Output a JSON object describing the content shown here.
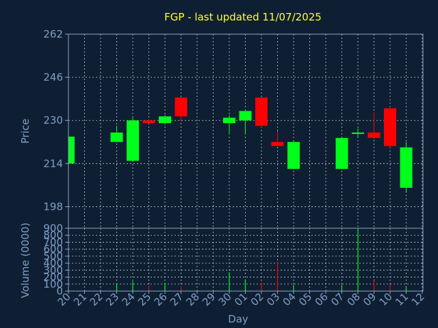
{
  "title": "FGP - last updated 11/07/2025",
  "colors": {
    "background": "#0f1f33",
    "up": "#00ff1a",
    "down": "#ff0000",
    "title": "#ffff33",
    "axis_text": "#7f9fc6",
    "grid": "#ffffff"
  },
  "chart_data": [
    {
      "type": "candlestick",
      "title": "FGP - last updated 11/07/2025",
      "ylabel": "Price",
      "ylim": [
        190,
        262
      ],
      "yticks": [
        198,
        214,
        230,
        246,
        262
      ],
      "grid": true,
      "categories": [
        "20",
        "21",
        "22",
        "23",
        "24",
        "25",
        "26",
        "27",
        "28",
        "29",
        "30",
        "01",
        "02",
        "03",
        "04",
        "05",
        "06",
        "07",
        "08",
        "09",
        "10",
        "11",
        "12"
      ],
      "candles": [
        {
          "day": "20",
          "open": 214,
          "high": 224,
          "low": 214,
          "close": 224
        },
        {
          "day": "23",
          "open": 222,
          "high": 228,
          "low": 222,
          "close": 225.5
        },
        {
          "day": "24",
          "open": 215,
          "high": 231,
          "low": 215,
          "close": 230
        },
        {
          "day": "25",
          "open": 230,
          "high": 230.5,
          "low": 229,
          "close": 229
        },
        {
          "day": "26",
          "open": 229,
          "high": 232,
          "low": 229,
          "close": 231.5
        },
        {
          "day": "27",
          "open": 238.5,
          "high": 238.5,
          "low": 229.5,
          "close": 231.5
        },
        {
          "day": "30",
          "open": 229,
          "high": 232,
          "low": 225,
          "close": 231
        },
        {
          "day": "01",
          "open": 230,
          "high": 233.5,
          "low": 225,
          "close": 233.5
        },
        {
          "day": "02",
          "open": 238.5,
          "high": 238.5,
          "low": 227.5,
          "close": 228
        },
        {
          "day": "03",
          "open": 222,
          "high": 226,
          "low": 220.5,
          "close": 220.5
        },
        {
          "day": "04",
          "open": 212,
          "high": 222.5,
          "low": 212,
          "close": 222
        },
        {
          "day": "07",
          "open": 212,
          "high": 223.5,
          "low": 212,
          "close": 223.5
        },
        {
          "day": "08",
          "open": 225,
          "high": 227,
          "low": 223.5,
          "close": 225.5
        },
        {
          "day": "09",
          "open": 225.5,
          "high": 233,
          "low": 223,
          "close": 223.5
        },
        {
          "day": "10",
          "open": 234.5,
          "high": 234.5,
          "low": 220,
          "close": 220.5
        },
        {
          "day": "11",
          "open": 205,
          "high": 222,
          "low": 203.5,
          "close": 220
        }
      ]
    },
    {
      "type": "bar",
      "xlabel": "Day",
      "ylabel": "Volume (0000)",
      "ylim": [
        0,
        900
      ],
      "yticks": [
        0,
        100,
        200,
        300,
        400,
        500,
        600,
        700,
        800,
        900
      ],
      "grid": true,
      "categories": [
        "20",
        "21",
        "22",
        "23",
        "24",
        "25",
        "26",
        "27",
        "28",
        "29",
        "30",
        "01",
        "02",
        "03",
        "04",
        "05",
        "06",
        "07",
        "08",
        "09",
        "10",
        "11",
        "12"
      ],
      "bars": [
        {
          "day": "20",
          "value": 30,
          "direction": "up"
        },
        {
          "day": "23",
          "value": 110,
          "direction": "up"
        },
        {
          "day": "24",
          "value": 140,
          "direction": "up"
        },
        {
          "day": "25",
          "value": 80,
          "direction": "down"
        },
        {
          "day": "26",
          "value": 120,
          "direction": "up"
        },
        {
          "day": "27",
          "value": 70,
          "direction": "down"
        },
        {
          "day": "30",
          "value": 270,
          "direction": "up"
        },
        {
          "day": "01",
          "value": 160,
          "direction": "up"
        },
        {
          "day": "02",
          "value": 130,
          "direction": "down"
        },
        {
          "day": "03",
          "value": 420,
          "direction": "down"
        },
        {
          "day": "04",
          "value": 90,
          "direction": "up"
        },
        {
          "day": "07",
          "value": 90,
          "direction": "up"
        },
        {
          "day": "08",
          "value": 900,
          "direction": "up"
        },
        {
          "day": "09",
          "value": 150,
          "direction": "down"
        },
        {
          "day": "10",
          "value": 100,
          "direction": "down"
        },
        {
          "day": "11",
          "value": 70,
          "direction": "up"
        }
      ]
    }
  ]
}
